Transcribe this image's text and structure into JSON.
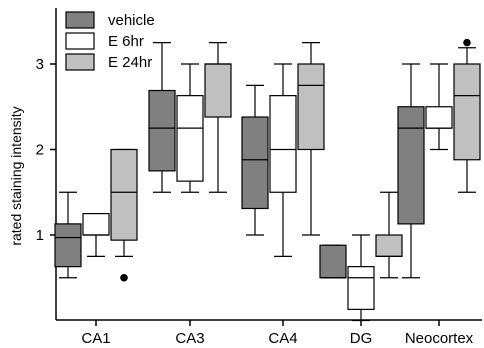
{
  "chart_data": {
    "type": "boxplot",
    "title": "",
    "xlabel": "",
    "ylabel": "rated staining intensity",
    "ylim": [
      0,
      3.5
    ],
    "yticks": [
      1,
      2,
      3
    ],
    "categories": [
      "CA1",
      "CA3",
      "CA4",
      "DG",
      "Neocortex"
    ],
    "legend_position": "top-left",
    "series": [
      {
        "name": "vehicle",
        "color": "#808080",
        "boxes": [
          {
            "whisker_low": 0.5,
            "q1": 0.63,
            "median": 0.97,
            "q3": 1.13,
            "whisker_high": 1.5,
            "outliers": []
          },
          {
            "whisker_low": 1.5,
            "q1": 1.75,
            "median": 2.25,
            "q3": 2.69,
            "whisker_high": 3.25,
            "outliers": []
          },
          {
            "whisker_low": 1.0,
            "q1": 1.31,
            "median": 1.88,
            "q3": 2.38,
            "whisker_high": 2.75,
            "outliers": []
          },
          {
            "whisker_low": 0.5,
            "q1": 0.5,
            "median": 0.5,
            "q3": 0.88,
            "whisker_high": 0.88,
            "outliers": []
          },
          {
            "whisker_low": 0.5,
            "q1": 1.13,
            "median": 2.25,
            "q3": 2.5,
            "whisker_high": 3.0,
            "outliers": []
          }
        ]
      },
      {
        "name": "E 6hr",
        "color": "#ffffff",
        "boxes": [
          {
            "whisker_low": 0.75,
            "q1": 1.0,
            "median": 1.0,
            "q3": 1.25,
            "whisker_high": 1.25,
            "outliers": []
          },
          {
            "whisker_low": 1.5,
            "q1": 1.63,
            "median": 2.25,
            "q3": 2.63,
            "whisker_high": 3.0,
            "outliers": []
          },
          {
            "whisker_low": 0.75,
            "q1": 1.5,
            "median": 2.0,
            "q3": 2.63,
            "whisker_high": 3.0,
            "outliers": []
          },
          {
            "whisker_low": 0.0,
            "q1": 0.13,
            "median": 0.5,
            "q3": 0.63,
            "whisker_high": 1.0,
            "outliers": []
          },
          {
            "whisker_low": 2.0,
            "q1": 2.25,
            "median": 2.25,
            "q3": 2.5,
            "whisker_high": 3.0,
            "outliers": []
          }
        ]
      },
      {
        "name": "E 24hr",
        "color": "#c0c0c0",
        "boxes": [
          {
            "whisker_low": 0.75,
            "q1": 0.94,
            "median": 1.5,
            "q3": 2.0,
            "whisker_high": 2.0,
            "outliers": [
              0.5
            ]
          },
          {
            "whisker_low": 1.5,
            "q1": 2.38,
            "median": 3.0,
            "q3": 3.0,
            "whisker_high": 3.25,
            "outliers": []
          },
          {
            "whisker_low": 1.0,
            "q1": 2.0,
            "median": 2.75,
            "q3": 3.0,
            "whisker_high": 3.25,
            "outliers": []
          },
          {
            "whisker_low": 0.5,
            "q1": 0.75,
            "median": 0.75,
            "q3": 1.0,
            "whisker_high": 1.5,
            "outliers": []
          },
          {
            "whisker_low": 1.5,
            "q1": 1.88,
            "median": 2.63,
            "q3": 3.0,
            "whisker_high": 3.19,
            "outliers": [
              3.25
            ]
          }
        ]
      }
    ]
  }
}
